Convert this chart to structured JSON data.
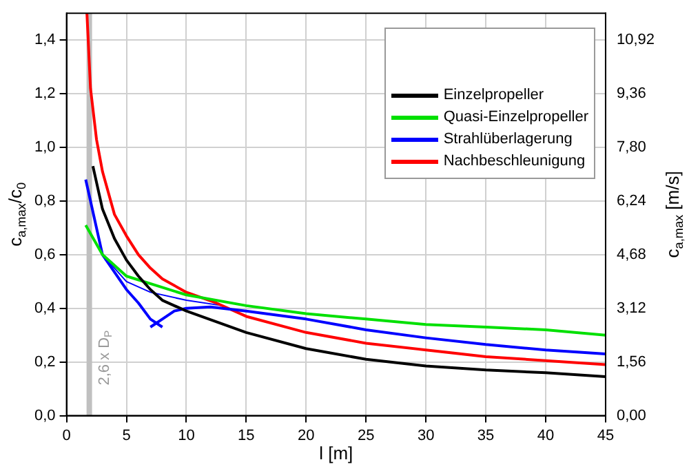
{
  "chart_data": {
    "type": "line",
    "xlabel": "l [m]",
    "ylabel": "c$_{a,max}$/c$_{0}$",
    "y2label": "c$_{a,max}$ [m/s]",
    "xlim": [
      0,
      45
    ],
    "xticks": [
      0,
      5,
      10,
      15,
      20,
      25,
      30,
      35,
      40,
      45
    ],
    "ylim": [
      0,
      1.5
    ],
    "yticks": [
      {
        "value": 0,
        "label": "0,0"
      },
      {
        "value": 0.2,
        "label": "0,2"
      },
      {
        "value": 0.4,
        "label": "0,4"
      },
      {
        "value": 0.6,
        "label": "0,6"
      },
      {
        "value": 0.8,
        "label": "0,8"
      },
      {
        "value": 1.0,
        "label": "1,0"
      },
      {
        "value": 1.2,
        "label": "1,2"
      },
      {
        "value": 1.4,
        "label": "1,4"
      }
    ],
    "y2lim": [
      0,
      11.7
    ],
    "y2ticks": [
      {
        "value": 0,
        "label": "0,00"
      },
      {
        "value": 1.56,
        "label": "1,56"
      },
      {
        "value": 3.12,
        "label": "3,12"
      },
      {
        "value": 4.68,
        "label": "4,68"
      },
      {
        "value": 6.24,
        "label": "6,24"
      },
      {
        "value": 7.8,
        "label": "7,80"
      },
      {
        "value": 9.36,
        "label": "9,36"
      },
      {
        "value": 10.92,
        "label": "10,92"
      }
    ],
    "grid": true,
    "legend": "top right",
    "marker": "none",
    "line_style": "solid",
    "ref_lines": [
      {
        "axis": "x",
        "value": 1.9,
        "label": "2,6 x D$_{P}$",
        "color": "#c0c0c0"
      }
    ],
    "series": [
      {
        "name": "Einzelpropeller",
        "color": "#000000",
        "x": [
          2.2,
          3,
          4,
          5,
          6,
          7,
          8,
          10,
          15,
          20,
          25,
          30,
          35,
          40,
          45
        ],
        "values": [
          0.93,
          0.77,
          0.66,
          0.58,
          0.52,
          0.47,
          0.43,
          0.39,
          0.31,
          0.25,
          0.21,
          0.185,
          0.17,
          0.16,
          0.145
        ]
      },
      {
        "name": "Quasi-Einzelpropeller",
        "color": "#00e000",
        "x": [
          1.6,
          3,
          5,
          10,
          15,
          20,
          25,
          30,
          35,
          40,
          45
        ],
        "values": [
          0.71,
          0.6,
          0.52,
          0.45,
          0.41,
          0.38,
          0.36,
          0.34,
          0.33,
          0.32,
          0.3
        ]
      },
      {
        "name": "Strahlüberlagerung",
        "color": "#0000ff",
        "x": [
          1.6,
          3,
          5,
          6,
          7,
          8,
          null,
          7,
          8,
          9,
          10,
          12,
          15,
          20,
          25,
          30,
          35,
          40,
          45
        ],
        "values": [
          0.88,
          0.6,
          0.47,
          0.42,
          0.36,
          0.33,
          null,
          0.33,
          0.36,
          0.39,
          0.4,
          0.405,
          0.39,
          0.36,
          0.32,
          0.29,
          0.265,
          0.245,
          0.23
        ]
      },
      {
        "name": "Nachbeschleunigung",
        "color": "#ff0000",
        "x": [
          1.7,
          2,
          2.5,
          3,
          4,
          5,
          6,
          7,
          8,
          10,
          12.5,
          15,
          20,
          25,
          30,
          35,
          40,
          45
        ],
        "values": [
          1.5,
          1.22,
          1.03,
          0.91,
          0.75,
          0.67,
          0.6,
          0.55,
          0.51,
          0.46,
          0.42,
          0.37,
          0.31,
          0.27,
          0.245,
          0.22,
          0.205,
          0.19
        ]
      },
      {
        "color": "#0000ff",
        "x": [
          3,
          5,
          7,
          10,
          13
        ],
        "values": [
          0.6,
          0.5,
          0.46,
          0.43,
          0.41
        ]
      }
    ]
  }
}
